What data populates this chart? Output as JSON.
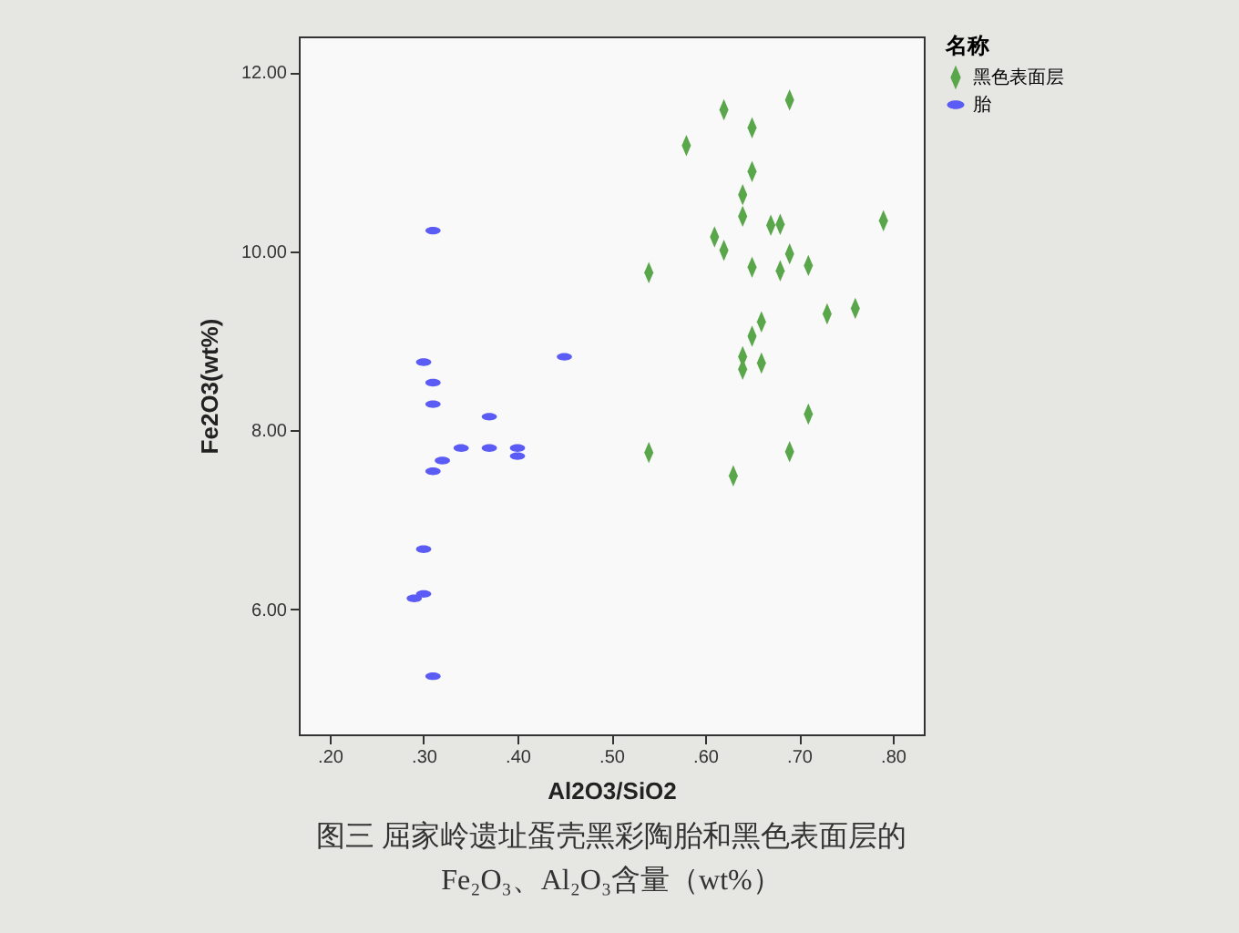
{
  "chart_data": {
    "type": "scatter",
    "title": "图三  屈家岭遗址蛋壳黑彩陶胎和黑色表面层的\nFe₂O₃、Al₂O₃含量（wt%）",
    "xlabel": "Al2O3/SiO2",
    "ylabel": "Fe2O3(wt%)",
    "legend_title": "名称",
    "legend": "right",
    "grid": false,
    "xlim": [
      0.167,
      0.833
    ],
    "xticks": [
      {
        "value": 0.2,
        "label": ".20"
      },
      {
        "value": 0.3,
        "label": ".30"
      },
      {
        "value": 0.4,
        "label": ".40"
      },
      {
        "value": 0.5,
        "label": ".50"
      },
      {
        "value": 0.6,
        "label": ".60"
      },
      {
        "value": 0.7,
        "label": ".70"
      },
      {
        "value": 0.8,
        "label": ".80"
      }
    ],
    "ylim": [
      4.6,
      12.4
    ],
    "yticks": [
      {
        "value": 6,
        "label": "6.00"
      },
      {
        "value": 8,
        "label": "8.00"
      },
      {
        "value": 10,
        "label": "10.00"
      },
      {
        "value": 12,
        "label": "12.00"
      }
    ],
    "series": [
      {
        "name": "黑色表面层",
        "color": "#5aa64a",
        "marker": "diamond",
        "x": [
          0.62,
          0.69,
          0.65,
          0.58,
          0.65,
          0.64,
          0.64,
          0.67,
          0.68,
          0.79,
          0.61,
          0.62,
          0.69,
          0.54,
          0.65,
          0.68,
          0.71,
          0.73,
          0.76,
          0.66,
          0.65,
          0.64,
          0.64,
          0.66,
          0.71,
          0.54,
          0.69,
          0.63
        ],
        "values": [
          11.58,
          11.69,
          11.38,
          11.18,
          10.89,
          10.63,
          10.39,
          10.29,
          10.3,
          10.34,
          10.16,
          10.01,
          9.97,
          9.76,
          9.82,
          9.78,
          9.84,
          9.3,
          9.36,
          9.21,
          9.05,
          8.82,
          8.68,
          8.75,
          8.18,
          7.75,
          7.76,
          7.49
        ]
      },
      {
        "name": "胎",
        "color": "#5b5bf5",
        "marker": "circle",
        "x": [
          0.31,
          0.3,
          0.31,
          0.31,
          0.45,
          0.37,
          0.34,
          0.37,
          0.4,
          0.4,
          0.32,
          0.31,
          0.3,
          0.3,
          0.29,
          0.31
        ],
        "values": [
          10.23,
          8.76,
          8.53,
          8.29,
          8.82,
          8.15,
          7.8,
          7.8,
          7.8,
          7.71,
          7.66,
          7.54,
          6.67,
          6.17,
          6.12,
          5.25
        ]
      }
    ]
  }
}
